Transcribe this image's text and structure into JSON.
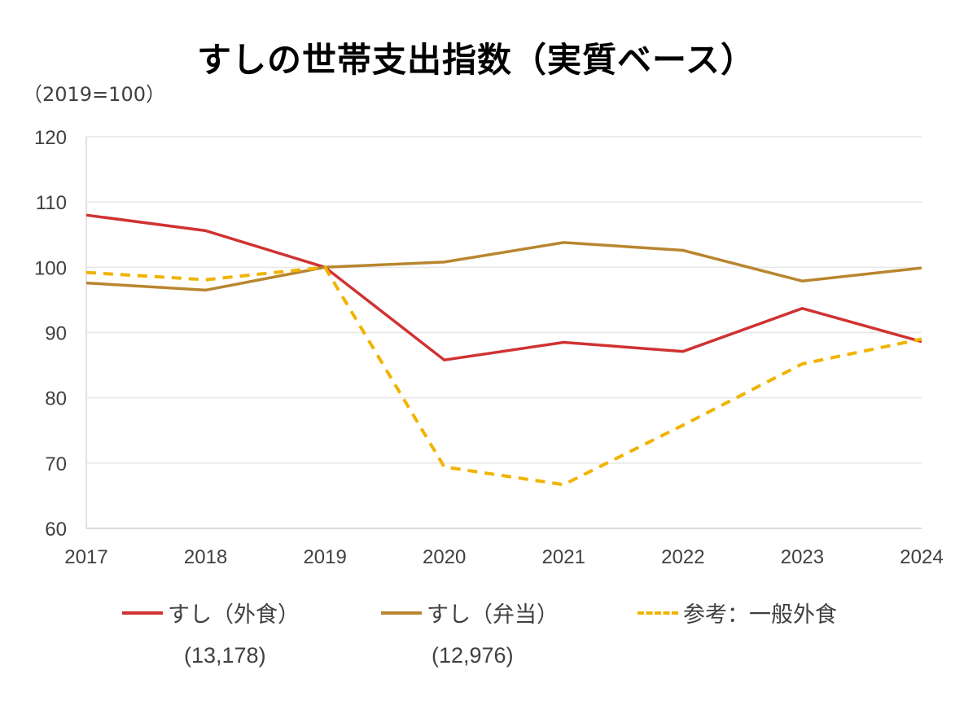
{
  "chart_data": {
    "type": "line",
    "title": "すしの世帯支出指数（実質ベース）",
    "unit_label": "（2019=100）",
    "xlabel": "",
    "ylabel": "",
    "categories": [
      "2017",
      "2018",
      "2019",
      "2020",
      "2021",
      "2022",
      "2023",
      "2024"
    ],
    "ylim": [
      60,
      120
    ],
    "yticks": [
      60,
      70,
      80,
      90,
      100,
      110,
      120
    ],
    "grid": true,
    "legend_position": "bottom",
    "series": [
      {
        "name": "すし（外食）",
        "note": "(13,178)",
        "color": "#d03232",
        "dashed": false,
        "values": [
          108.0,
          105.6,
          100.0,
          85.8,
          88.5,
          87.1,
          93.7,
          88.6
        ]
      },
      {
        "name": "すし（弁当）",
        "note": "(12,976)",
        "color": "#b8862f",
        "dashed": false,
        "values": [
          97.6,
          96.5,
          100.0,
          100.8,
          103.8,
          102.6,
          97.9,
          99.9
        ]
      },
      {
        "name": "参考：一般外食",
        "note": "",
        "color": "#f0b400",
        "dashed": true,
        "values": [
          99.2,
          98.1,
          100.0,
          69.4,
          66.7,
          75.8,
          85.2,
          89.0
        ]
      }
    ]
  }
}
